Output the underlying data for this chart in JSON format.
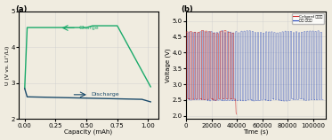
{
  "panel_a": {
    "title": "(a)",
    "xlabel": "Capacity (mAh)",
    "ylabel": "U (V vs. Li⁺/Li)",
    "xlim": [
      -0.05,
      1.08
    ],
    "ylim": [
      2.0,
      5.0
    ],
    "xticks": [
      0.0,
      0.25,
      0.5,
      0.75,
      1.0
    ],
    "yticks": [
      2,
      3,
      4,
      5
    ],
    "charge_color": "#1aaa6a",
    "discharge_color": "#1a4a6a",
    "charge_label": "Charge",
    "discharge_label": "Discharge",
    "bg_color": "#f0ece0"
  },
  "panel_b": {
    "title": "(b)",
    "xlabel": "Time (s)",
    "ylabel": "Voltage (V)",
    "xlim": [
      0,
      110000
    ],
    "ylim": [
      1.9,
      5.3
    ],
    "xticks": [
      0,
      20000,
      40000,
      60000,
      80000,
      100000
    ],
    "yticks": [
      2.0,
      2.5,
      3.0,
      3.5,
      4.0,
      4.5,
      5.0
    ],
    "celgard_color": "#cc2222",
    "chitin_color": "#2244bb",
    "celgard_label": "Celgard 분리막",
    "chitin_label": "키틴 분리막",
    "bg_color": "#f0ece0",
    "num_cycles_celgard": 13,
    "num_cycles_chitin": 50,
    "celgard_end_time": 39000,
    "total_time": 108000,
    "charge_high_start": 4.65,
    "charge_high_end": 4.65,
    "discharge_low": 2.5,
    "celgard_fail_v": 2.1
  }
}
